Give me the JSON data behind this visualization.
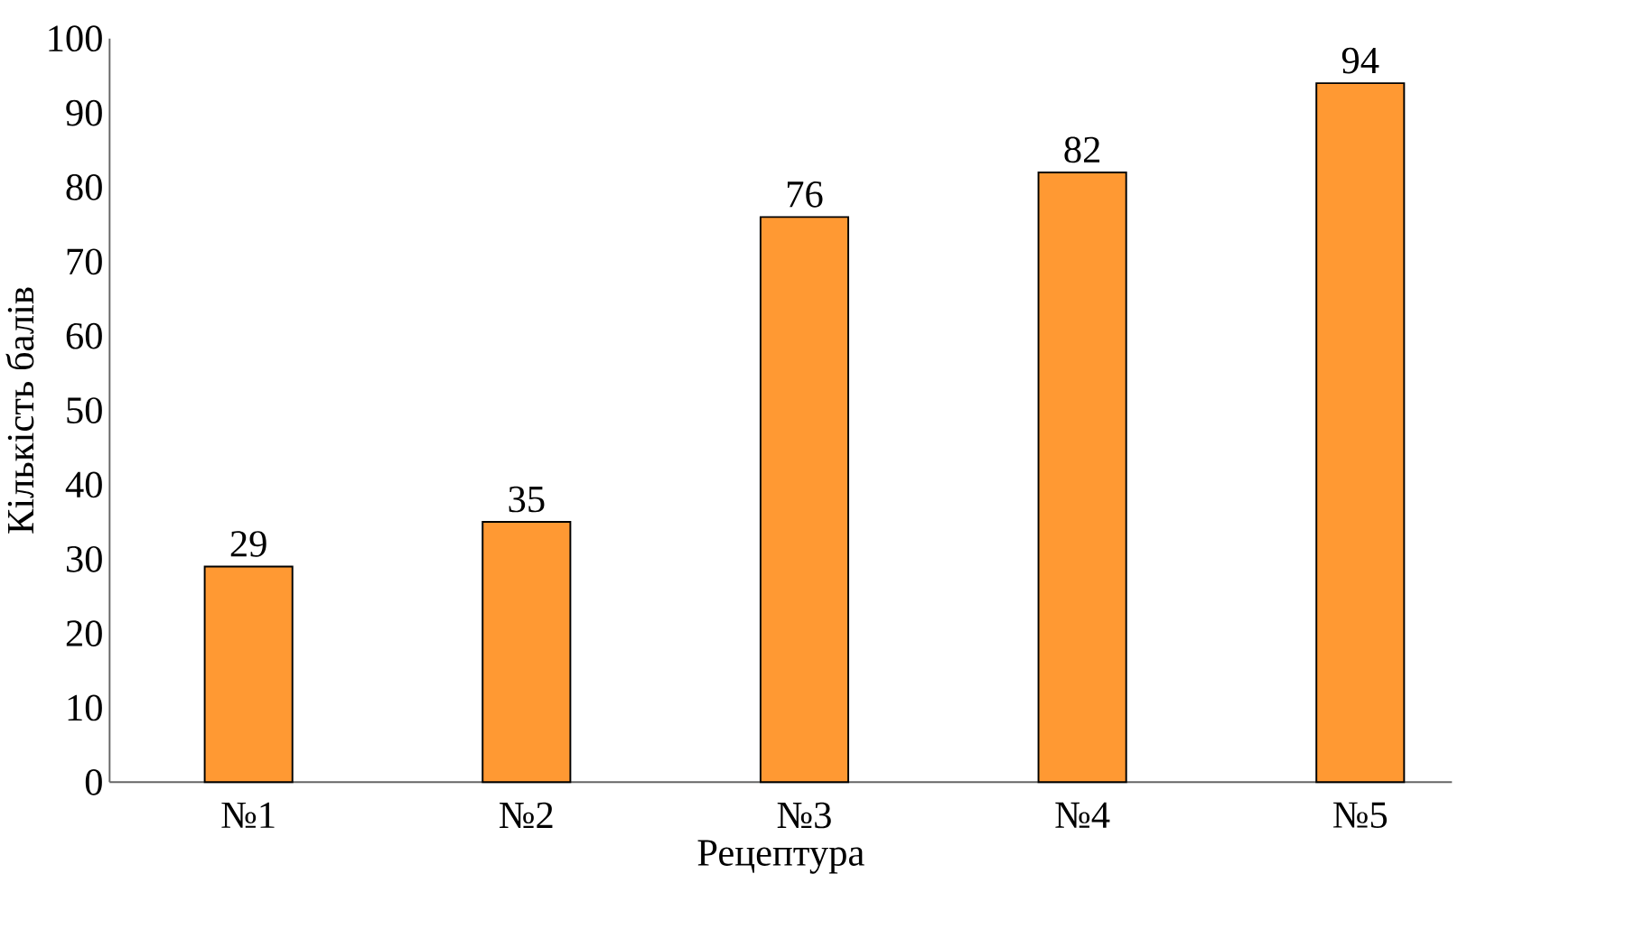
{
  "chart_data": {
    "type": "bar",
    "xlabel": "Рецептура",
    "ylabel": "Кількість балів",
    "categories": [
      "№1",
      "№2",
      "№3",
      "№4",
      "№5"
    ],
    "values": [
      29,
      35,
      76,
      82,
      94
    ],
    "color": "#ff9933",
    "data_labels": true,
    "grid": false,
    "ylim": [
      0,
      100
    ],
    "yticks": [
      0,
      10,
      20,
      30,
      40,
      50,
      60,
      70,
      80,
      90,
      100
    ]
  }
}
